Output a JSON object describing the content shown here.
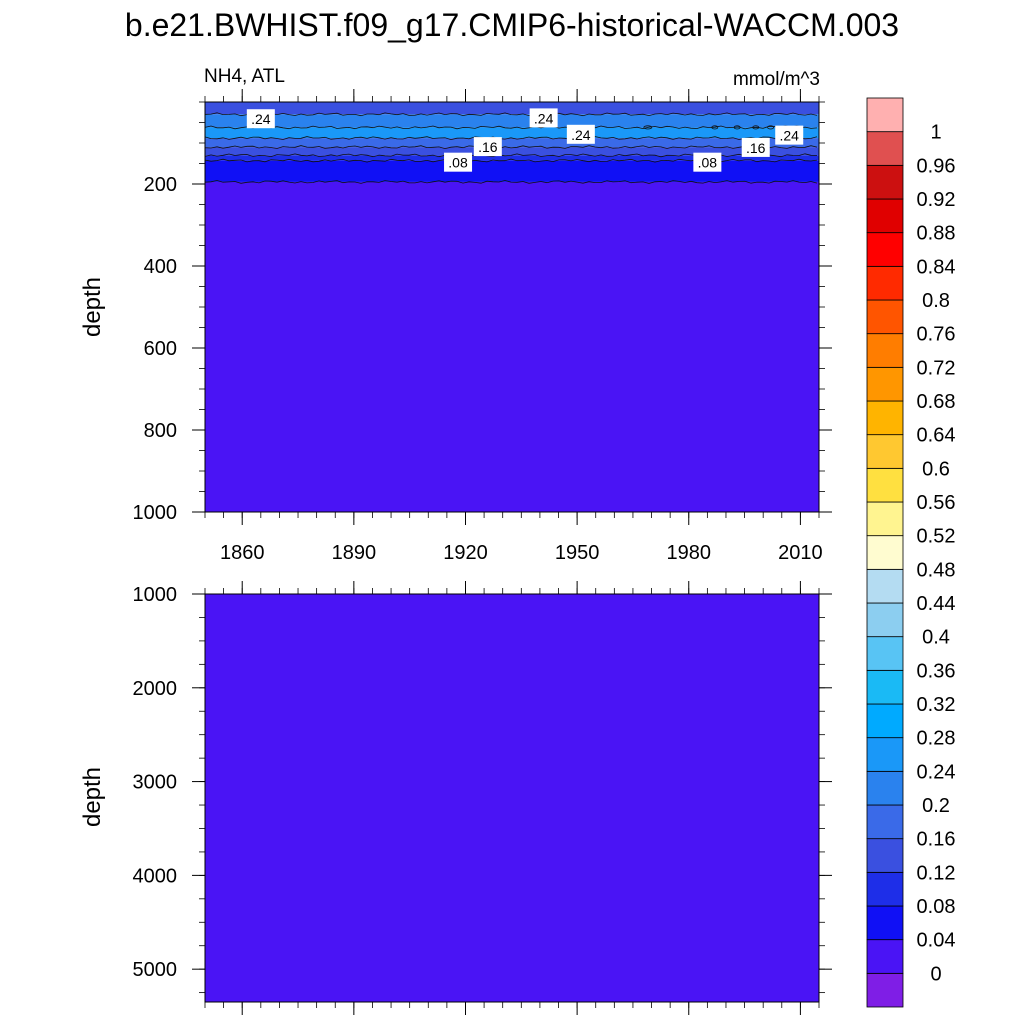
{
  "title": "b.e21.BWHIST.f09_g17.CMIP6-historical-WACCM.003",
  "colors": {
    "fill_deep": "#4a14f5",
    "fill_008": "#1e1ef7",
    "fill_012": "#3c4ee6",
    "fill_016": "#3a68ee",
    "fill_020": "#2a84f0",
    "fill_024": "#1a99f6"
  },
  "chart_data": [
    {
      "type": "contour",
      "panel": "top",
      "left_label": "NH4, ATL",
      "right_label": "mmol/m^3",
      "ylabel": "depth",
      "y_range": [
        0,
        1000
      ],
      "y_reversed": true,
      "y_ticks": [
        200,
        400,
        600,
        800,
        1000
      ],
      "x_range": [
        1850,
        2015
      ],
      "x_ticks": [
        1860,
        1890,
        1920,
        1950,
        1980,
        2010
      ],
      "contour_labels": [
        {
          "text": ".24",
          "year": 1865,
          "depth": 42
        },
        {
          "text": ".24",
          "year": 1941,
          "depth": 40
        },
        {
          "text": ".24",
          "year": 1951,
          "depth": 80
        },
        {
          "text": ".24",
          "year": 2007,
          "depth": 82
        },
        {
          "text": ".16",
          "year": 1926,
          "depth": 110
        },
        {
          "text": ".16",
          "year": 1998,
          "depth": 112
        },
        {
          "text": ".08",
          "year": 1918,
          "depth": 148
        },
        {
          "text": ".08",
          "year": 1985,
          "depth": 148
        }
      ],
      "bands": [
        {
          "from_depth": 0,
          "to_depth": 30,
          "value": 0.14
        },
        {
          "from_depth": 30,
          "to_depth": 62,
          "value": 0.22
        },
        {
          "from_depth": 62,
          "to_depth": 88,
          "value": 0.26
        },
        {
          "from_depth": 88,
          "to_depth": 110,
          "value": 0.18
        },
        {
          "from_depth": 110,
          "to_depth": 130,
          "value": 0.14
        },
        {
          "from_depth": 130,
          "to_depth": 143,
          "value": 0.1
        },
        {
          "from_depth": 143,
          "to_depth": 195,
          "value": 0.06
        },
        {
          "from_depth": 195,
          "to_depth": 1000,
          "value": 0.02
        }
      ]
    },
    {
      "type": "contour",
      "panel": "bottom",
      "ylabel": "depth",
      "y_range": [
        1000,
        5350
      ],
      "y_reversed": true,
      "y_ticks": [
        1000,
        2000,
        3000,
        4000,
        5000
      ],
      "x_range": [
        1850,
        2015
      ],
      "x_ticks": [
        1860,
        1890,
        1920,
        1950,
        1980,
        2010
      ],
      "bands": [
        {
          "from_depth": 1000,
          "to_depth": 5350,
          "value": 0.02
        }
      ]
    }
  ],
  "colorbar": {
    "levels": [
      "0",
      "0.04",
      "0.08",
      "0.12",
      "0.16",
      "0.2",
      "0.24",
      "0.28",
      "0.32",
      "0.36",
      "0.4",
      "0.44",
      "0.48",
      "0.52",
      "0.56",
      "0.6",
      "0.64",
      "0.68",
      "0.72",
      "0.76",
      "0.8",
      "0.84",
      "0.88",
      "0.92",
      "0.96",
      "1"
    ],
    "colors": [
      "#7f1ee6",
      "#4a14f5",
      "#1010f5",
      "#1e2ee8",
      "#3a50e0",
      "#3a6ae8",
      "#2a82ee",
      "#1a98f8",
      "#00aaff",
      "#1abaf5",
      "#58c4f4",
      "#8ccef0",
      "#b4dcf2",
      "#fffcd0",
      "#fff490",
      "#ffe040",
      "#ffc830",
      "#ffb400",
      "#ff9600",
      "#ff7d00",
      "#ff5500",
      "#ff2a00",
      "#ff0000",
      "#e00000",
      "#cc1010",
      "#e05050",
      "#ffb0b0"
    ]
  }
}
